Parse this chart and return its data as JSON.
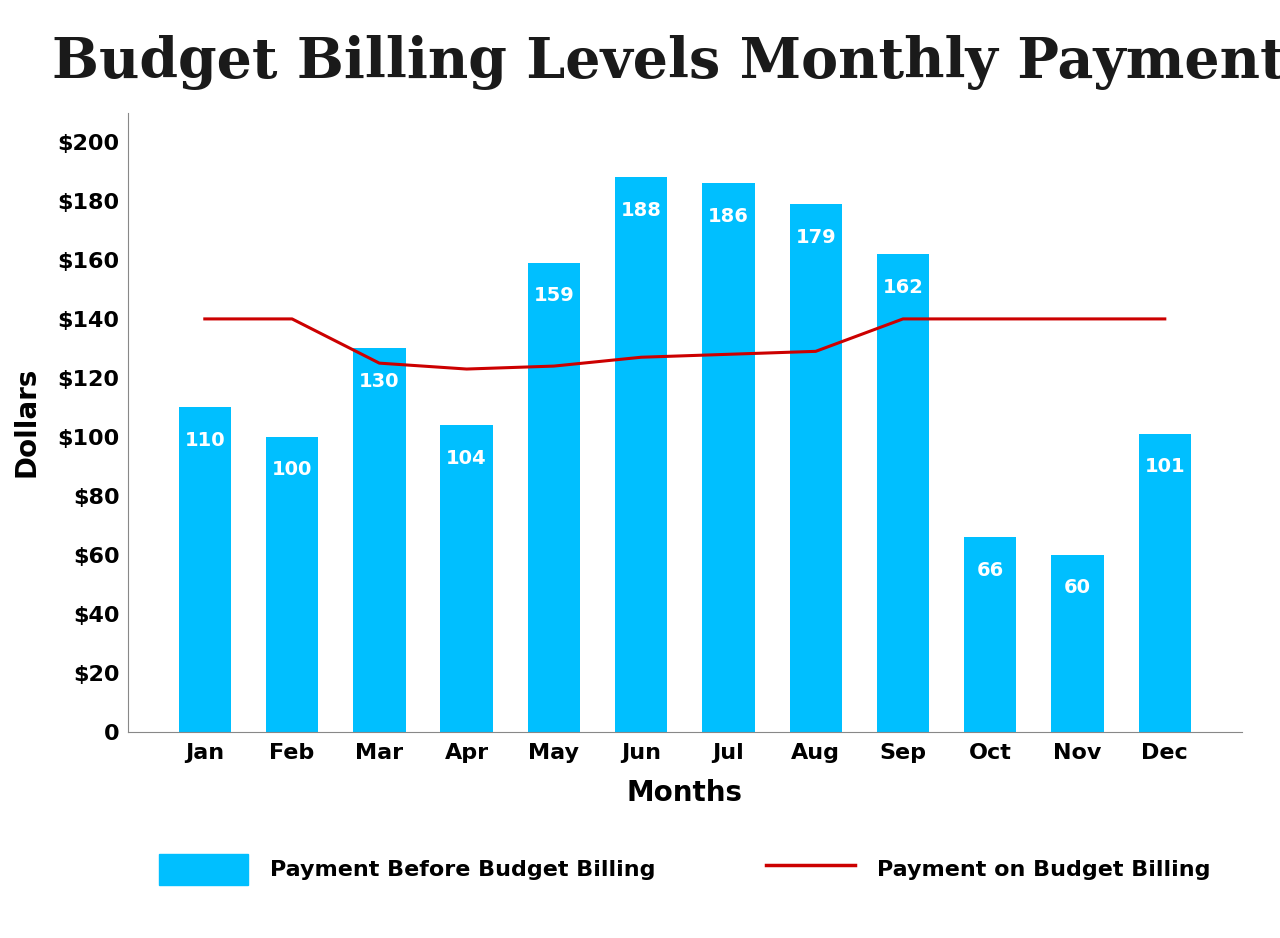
{
  "title": "Budget Billing Levels Monthly Payments",
  "xlabel": "Months",
  "ylabel": "Dollars",
  "months": [
    "Jan",
    "Feb",
    "Mar",
    "Apr",
    "May",
    "Jun",
    "Jul",
    "Aug",
    "Sep",
    "Oct",
    "Nov",
    "Dec"
  ],
  "bar_values": [
    110,
    100,
    130,
    104,
    159,
    188,
    186,
    179,
    162,
    66,
    60,
    101
  ],
  "bar_color": "#00BFFF",
  "line_values": [
    140,
    140,
    125,
    123,
    124,
    127,
    128,
    129,
    140,
    140,
    140,
    140
  ],
  "line_color": "#CC0000",
  "ylim": [
    0,
    210
  ],
  "yticks": [
    0,
    20,
    40,
    60,
    80,
    100,
    120,
    140,
    160,
    180,
    200
  ],
  "ytick_labels": [
    "0",
    "$20",
    "$40",
    "$60",
    "$80",
    "$100",
    "$120",
    "$140",
    "$160",
    "$180",
    "$200"
  ],
  "label_before": "Payment Before Budget Billing",
  "label_on": "Payment on Budget Billing",
  "title_fontsize": 40,
  "axis_label_fontsize": 20,
  "tick_fontsize": 16,
  "bar_label_fontsize": 14,
  "legend_fontsize": 16,
  "background_color": "#ffffff"
}
